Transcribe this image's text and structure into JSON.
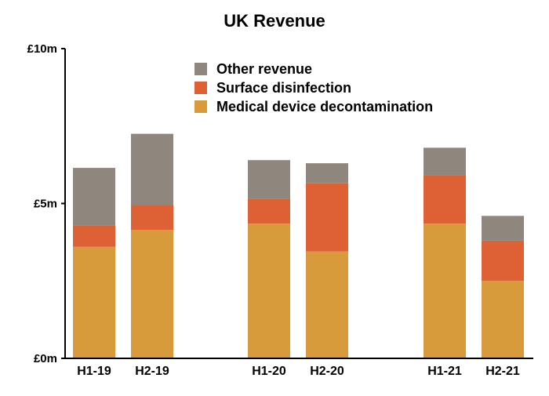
{
  "chart_data": {
    "type": "bar",
    "stacked": true,
    "title": "UK Revenue",
    "xlabel": "",
    "ylabel": "",
    "categories": [
      "H1-19",
      "H2-19",
      "H1-20",
      "H2-20",
      "H1-21",
      "H2-21"
    ],
    "series": [
      {
        "name": "Medical device decontamination",
        "color": "#D89B3C",
        "values": [
          3.6,
          4.15,
          4.35,
          3.45,
          4.35,
          2.5
        ]
      },
      {
        "name": "Surface disinfection",
        "color": "#DE6136",
        "values": [
          0.7,
          0.8,
          0.8,
          2.2,
          1.55,
          1.3
        ]
      },
      {
        "name": "Other revenue",
        "color": "#8F877E",
        "values": [
          1.85,
          2.3,
          1.25,
          0.65,
          0.9,
          0.8
        ]
      }
    ],
    "ylim": [
      0,
      10
    ],
    "yticks": [
      {
        "value": 0,
        "label": "£0m"
      },
      {
        "value": 5,
        "label": "£5m"
      },
      {
        "value": 10,
        "label": "£10m"
      }
    ],
    "legend_position": "top-center",
    "grid": false
  }
}
